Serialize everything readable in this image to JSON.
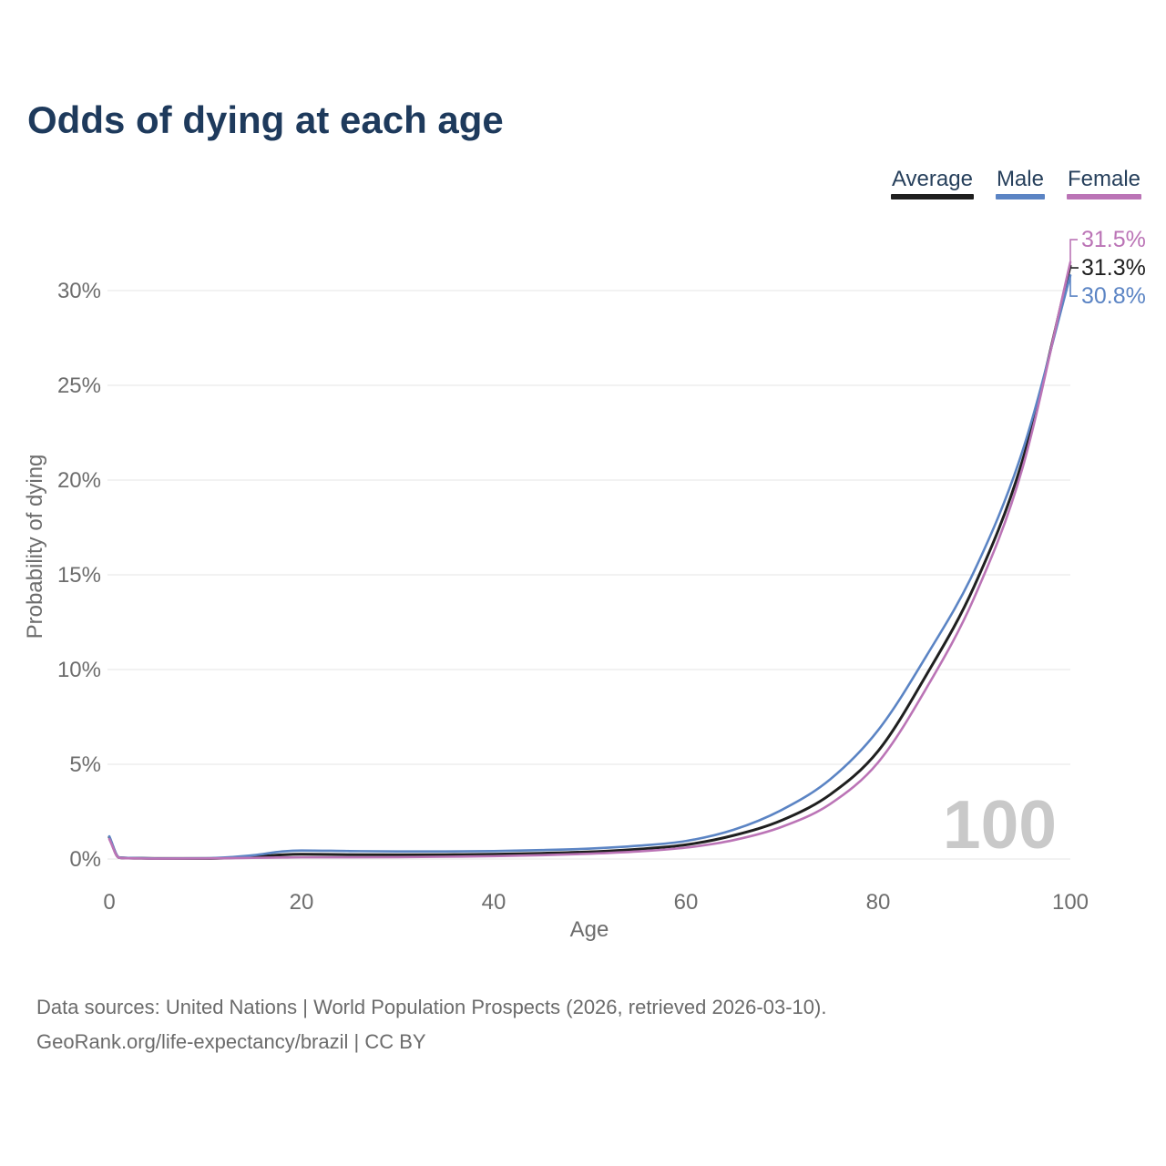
{
  "title": "Odds of dying at each age",
  "legend": {
    "items": [
      {
        "id": "average",
        "label": "Average",
        "color": "#1f1f1f"
      },
      {
        "id": "male",
        "label": "Male",
        "color": "#5b84c4"
      },
      {
        "id": "female",
        "label": "Female",
        "color": "#bb74b6"
      }
    ]
  },
  "watermark": "100",
  "footer": {
    "line1": "Data sources: United Nations | World Population Prospects (2026, retrieved 2026-03-10).",
    "line2": "GeoRank.org/life-expectancy/brazil | CC BY"
  },
  "chart_data": {
    "type": "line",
    "title": "Odds of dying at each age",
    "xlabel": "Age",
    "ylabel": "Probability of dying",
    "xlim": [
      0,
      100
    ],
    "ylim": [
      0,
      32.5
    ],
    "x_ticks": [
      0,
      20,
      40,
      60,
      80,
      100
    ],
    "y_ticks": [
      0,
      5,
      10,
      15,
      20,
      25,
      30
    ],
    "y_tick_suffix": "%",
    "grid": "horizontal",
    "legend_position": "top-right",
    "x": [
      0,
      1,
      2,
      5,
      10,
      15,
      18,
      20,
      25,
      30,
      35,
      40,
      45,
      50,
      55,
      60,
      65,
      70,
      75,
      80,
      85,
      90,
      95,
      100
    ],
    "series": [
      {
        "name": "Average",
        "id": "average",
        "color": "#1f1f1f",
        "end_label": "31.3%",
        "values": [
          1.15,
          0.08,
          0.05,
          0.03,
          0.03,
          0.12,
          0.22,
          0.25,
          0.23,
          0.22,
          0.23,
          0.25,
          0.3,
          0.38,
          0.52,
          0.75,
          1.25,
          2.05,
          3.4,
          5.7,
          9.7,
          14.4,
          21.0,
          31.3
        ]
      },
      {
        "name": "Male",
        "id": "male",
        "color": "#5b84c4",
        "end_label": "30.8%",
        "values": [
          1.2,
          0.09,
          0.06,
          0.03,
          0.04,
          0.2,
          0.4,
          0.45,
          0.42,
          0.4,
          0.4,
          0.42,
          0.47,
          0.55,
          0.7,
          0.95,
          1.55,
          2.6,
          4.2,
          6.8,
          10.7,
          15.2,
          21.5,
          30.8
        ]
      },
      {
        "name": "Female",
        "id": "female",
        "color": "#bb74b6",
        "end_label": "31.5%",
        "values": [
          1.05,
          0.07,
          0.04,
          0.02,
          0.03,
          0.06,
          0.08,
          0.09,
          0.09,
          0.1,
          0.12,
          0.15,
          0.2,
          0.28,
          0.4,
          0.6,
          1.0,
          1.7,
          2.9,
          5.1,
          9.0,
          13.8,
          20.6,
          31.5
        ]
      }
    ]
  },
  "colors": {
    "title_text": "#1e3a5c",
    "axis_text": "#6d6d6d",
    "grid_line": "#e9e9e9",
    "watermark": "#c9c9c9",
    "footer_text": "#6b6b6b"
  }
}
